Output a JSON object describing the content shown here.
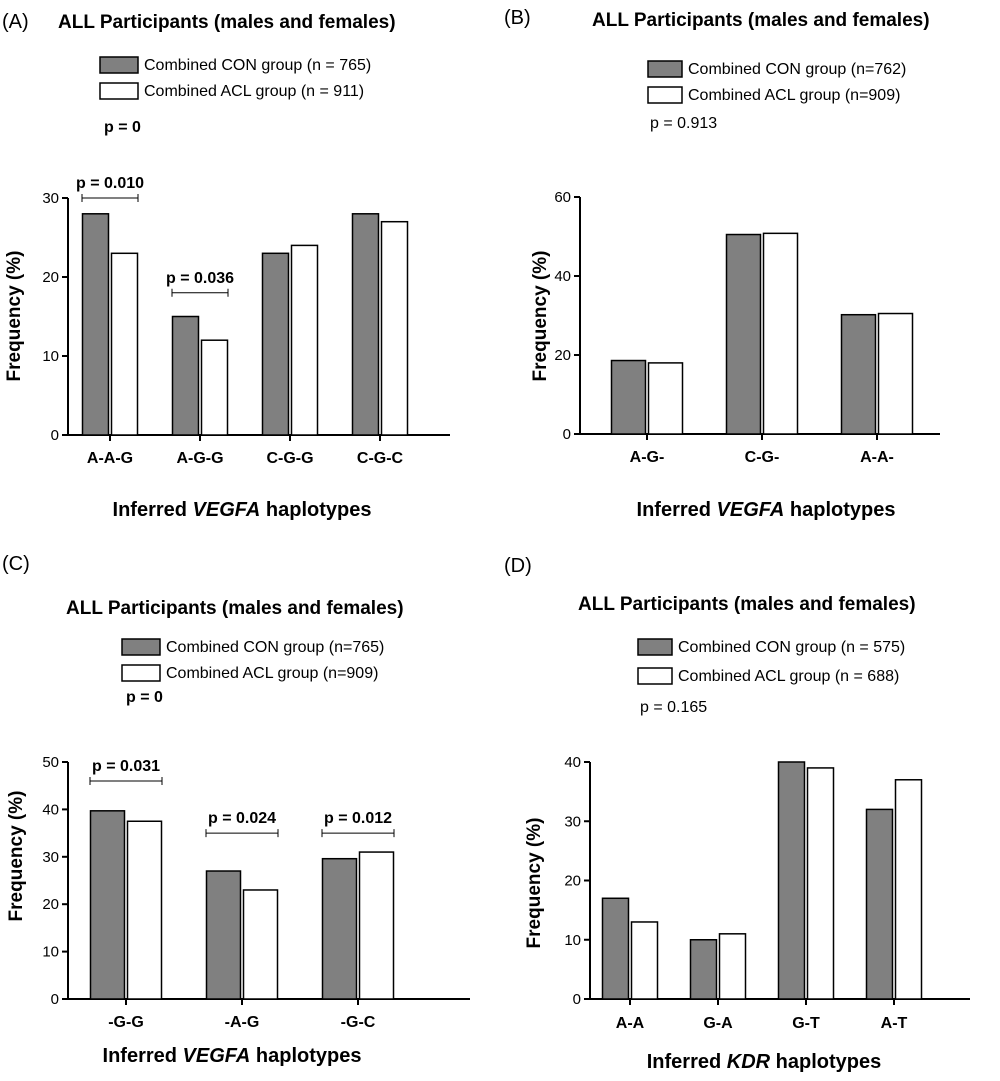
{
  "colors": {
    "con_fill": "#808080",
    "acl_fill": "#ffffff",
    "stroke": "#000000"
  },
  "chart_data": [
    {
      "panel": "(A)",
      "type": "bar",
      "title": "ALL Participants (males and females)",
      "legend": [
        "Combined CON group (n = 765)",
        "Combined ACL group (n = 911)"
      ],
      "overall_p": "p = 0",
      "overall_p_bold": true,
      "categories": [
        "A-A-G",
        "A-G-G",
        "C-G-G",
        "C-G-C"
      ],
      "series": [
        {
          "name": "Combined CON group (n = 765)",
          "values": [
            28,
            15,
            23,
            28
          ]
        },
        {
          "name": "Combined ACL group (n = 911)",
          "values": [
            23,
            12,
            24,
            27
          ]
        }
      ],
      "yticks": [
        0,
        10,
        20,
        30
      ],
      "ylim": [
        0,
        30
      ],
      "ylabel": "Frequency (%)",
      "xlabel_pre": "Inferred ",
      "xlabel_it": "VEGFA",
      "xlabel_post": " haplotypes",
      "annotations": [
        {
          "cat": 0,
          "label": "p = 0.010",
          "y": 30
        },
        {
          "cat": 1,
          "label": "p = 0.036",
          "y": 18
        }
      ]
    },
    {
      "panel": "(B)",
      "type": "bar",
      "title": "ALL Participants (males and females)",
      "legend": [
        "Combined CON group (n=762)",
        "Combined ACL group (n=909)"
      ],
      "overall_p": "p =  0.913",
      "overall_p_bold": false,
      "categories": [
        "A-G-",
        "C-G-",
        "A-A-"
      ],
      "series": [
        {
          "name": "Combined CON group (n=762)",
          "values": [
            18.6,
            50.5,
            30.2
          ]
        },
        {
          "name": "Combined ACL group (n=909)",
          "values": [
            18.0,
            50.8,
            30.5
          ]
        }
      ],
      "yticks": [
        0,
        20,
        40,
        60
      ],
      "ylim": [
        0,
        60
      ],
      "ylabel": "Frequency (%)",
      "xlabel_pre": "Inferred ",
      "xlabel_it": "VEGFA",
      "xlabel_post": " haplotypes",
      "annotations": []
    },
    {
      "panel": "(C)",
      "type": "bar",
      "title": "ALL Participants (males and females)",
      "legend": [
        "Combined CON group (n=765)",
        "Combined ACL group (n=909)"
      ],
      "overall_p": "p =  0",
      "overall_p_bold": true,
      "categories": [
        "-G-G",
        "-A-G",
        "-G-C"
      ],
      "series": [
        {
          "name": "Combined CON group (n=765)",
          "values": [
            39.7,
            27,
            29.6
          ]
        },
        {
          "name": "Combined ACL group (n=909)",
          "values": [
            37.5,
            23,
            31
          ]
        }
      ],
      "yticks": [
        0,
        10,
        20,
        30,
        40,
        50
      ],
      "ylim": [
        0,
        50
      ],
      "ylabel": "Frequency (%)",
      "xlabel_pre": "Inferred ",
      "xlabel_it": "VEGFA",
      "xlabel_post": " haplotypes",
      "annotations": [
        {
          "cat": 0,
          "label": "p = 0.031",
          "y": 46
        },
        {
          "cat": 1,
          "label": "p = 0.024",
          "y": 35
        },
        {
          "cat": 2,
          "label": "p = 0.012",
          "y": 35
        }
      ]
    },
    {
      "panel": "(D)",
      "type": "bar",
      "title": "ALL Participants (males and females)",
      "legend": [
        "Combined CON group (n = 575)",
        "Combined ACL group (n = 688)"
      ],
      "overall_p": "p = 0.165",
      "overall_p_bold": false,
      "categories": [
        "A-A",
        "G-A",
        "G-T",
        "A-T"
      ],
      "series": [
        {
          "name": "Combined CON group (n = 575)",
          "values": [
            17,
            10,
            40,
            32
          ]
        },
        {
          "name": "Combined ACL group (n = 688)",
          "values": [
            13,
            11,
            39,
            37
          ]
        }
      ],
      "yticks": [
        0,
        10,
        20,
        30,
        40
      ],
      "ylim": [
        0,
        40
      ],
      "ylabel": "Frequency (%)",
      "xlabel_pre": "Inferred ",
      "xlabel_it": "KDR",
      "xlabel_post": " haplotypes",
      "annotations": []
    }
  ]
}
